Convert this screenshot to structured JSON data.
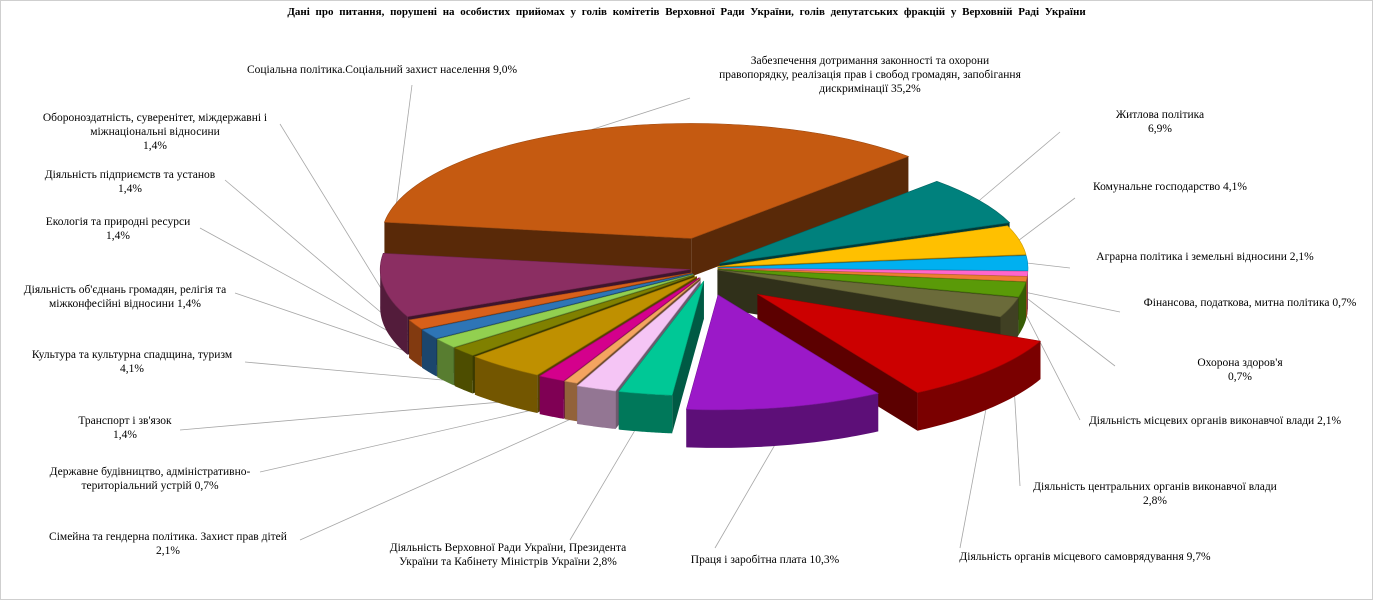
{
  "chart_data": {
    "type": "pie",
    "title": "Дані про питання, порушені на особистих прийомах у голів комітетів Верховної Ради України, голів депутатських фракцій у Верховній Раді України",
    "legend": "none",
    "slices": [
      {
        "label": [
          "Забезпечення дотримання законності та охорони",
          "правопорядку, реалізація прав і свобод громадян, запобігання",
          "дискримінації 35,2%"
        ],
        "value": 35.2,
        "color": "#c55a11"
      },
      {
        "label": [
          "Житлова політика",
          "6,9%"
        ],
        "value": 6.9,
        "color": "#00817d"
      },
      {
        "label": [
          "Комунальне господарство 4,1%"
        ],
        "value": 4.1,
        "color": "#ffc000"
      },
      {
        "label": [
          "Аграрна політика і земельні відносини 2,1%"
        ],
        "value": 2.1,
        "color": "#00b0f0"
      },
      {
        "label": [
          "Фінансова, податкова, митна політика 0,7%"
        ],
        "value": 0.7,
        "color": "#ff66cc"
      },
      {
        "label": [
          "Охорона здоров'я",
          "0,7%"
        ],
        "value": 0.7,
        "color": "#ed7d31"
      },
      {
        "label": [
          "Діяльність місцевих органів виконавчої влади 2,1%"
        ],
        "value": 2.1,
        "color": "#5a9a08"
      },
      {
        "label": [
          "Діяльність центральних органів виконавчої влади",
          "2,8%"
        ],
        "value": 2.8,
        "color": "#6b6b3a"
      },
      {
        "label": [
          "Діяльність органів місцевого самоврядування 9,7%"
        ],
        "value": 9.7,
        "color": "#cc0000"
      },
      {
        "label": [
          "Праця і заробітна плата 10,3%"
        ],
        "value": 10.3,
        "color": "#9b19c8"
      },
      {
        "label": [
          "Діяльність Верховної Ради України, Президента",
          "України та Кабінету Міністрів України 2,8%"
        ],
        "value": 2.8,
        "color": "#00c896"
      },
      {
        "label": [
          "Сімейна та гендерна політика. Захист прав дітей",
          "2,1%"
        ],
        "value": 2.1,
        "color": "#f5c5f5"
      },
      {
        "label": [
          "Державне будівництво, адміністративно-",
          "територіальний устрій 0,7%"
        ],
        "value": 0.7,
        "color": "#f4a460"
      },
      {
        "label": [
          "Транспорт і зв'язок",
          "1,4%"
        ],
        "value": 1.4,
        "color": "#d4008c"
      },
      {
        "label": [
          "Культура та культурна спадщина, туризм",
          "4,1%"
        ],
        "value": 4.1,
        "color": "#bf9000"
      },
      {
        "label": [
          "Діяльність об'єднань громадян, релігія та",
          "міжконфесійні відносини 1,4%"
        ],
        "value": 1.4,
        "color": "#808000"
      },
      {
        "label": [
          "Екологія та природні ресурси",
          "1,4%"
        ],
        "value": 1.4,
        "color": "#92d050"
      },
      {
        "label": [
          "Діяльність підприємств та установ",
          "1,4%"
        ],
        "value": 1.4,
        "color": "#2e75b6"
      },
      {
        "label": [
          "Обороноздатність, суверенітет, міждержавні і",
          "міжнаціональні відносини",
          "1,4%"
        ],
        "value": 1.4,
        "color": "#d8601a"
      },
      {
        "label": [
          "Соціальна політика.Соціальний захист населення 9,0%"
        ],
        "value": 9.0,
        "color": "#8b2e62"
      }
    ]
  }
}
